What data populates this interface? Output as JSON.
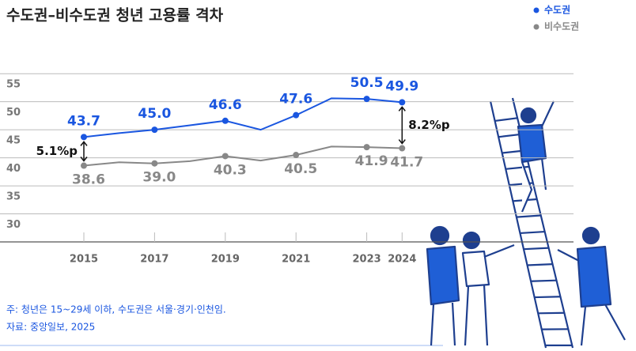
{
  "chart_data": {
    "type": "line",
    "title": "수도권–비수도권 청년 고용률 격차",
    "categories": [
      "2015",
      null,
      "2017",
      null,
      "2019",
      null,
      "2021",
      null,
      "2023",
      "2024"
    ],
    "series": [
      {
        "name": "수도권",
        "color": "#1a56e0",
        "values": [
          43.7,
          44.4,
          45.0,
          45.8,
          46.6,
          45.0,
          47.6,
          50.6,
          50.5,
          49.9
        ],
        "value_labels": [
          "43.7",
          null,
          "45.0",
          null,
          "46.6",
          null,
          "47.6",
          null,
          "50.5",
          "49.9"
        ]
      },
      {
        "name": "비수도권",
        "color": "#888888",
        "values": [
          38.6,
          39.2,
          39.0,
          39.4,
          40.3,
          39.5,
          40.5,
          42.0,
          41.9,
          41.7
        ],
        "value_labels": [
          "38.6",
          null,
          "39.0",
          null,
          "40.3",
          null,
          "40.5",
          null,
          "41.9",
          "41.7"
        ]
      }
    ],
    "annotations": [
      "5.1%p",
      "8.2%p"
    ],
    "ylim": [
      25,
      57
    ],
    "yticks": [
      30,
      35,
      40,
      45,
      50,
      55
    ],
    "grid": true,
    "legend": "top-right",
    "notes": [
      "주: 청년은 15~29세 이하, 수도권은 서울·경기·인천임.",
      "자료: 중앙일보, 2025"
    ]
  }
}
